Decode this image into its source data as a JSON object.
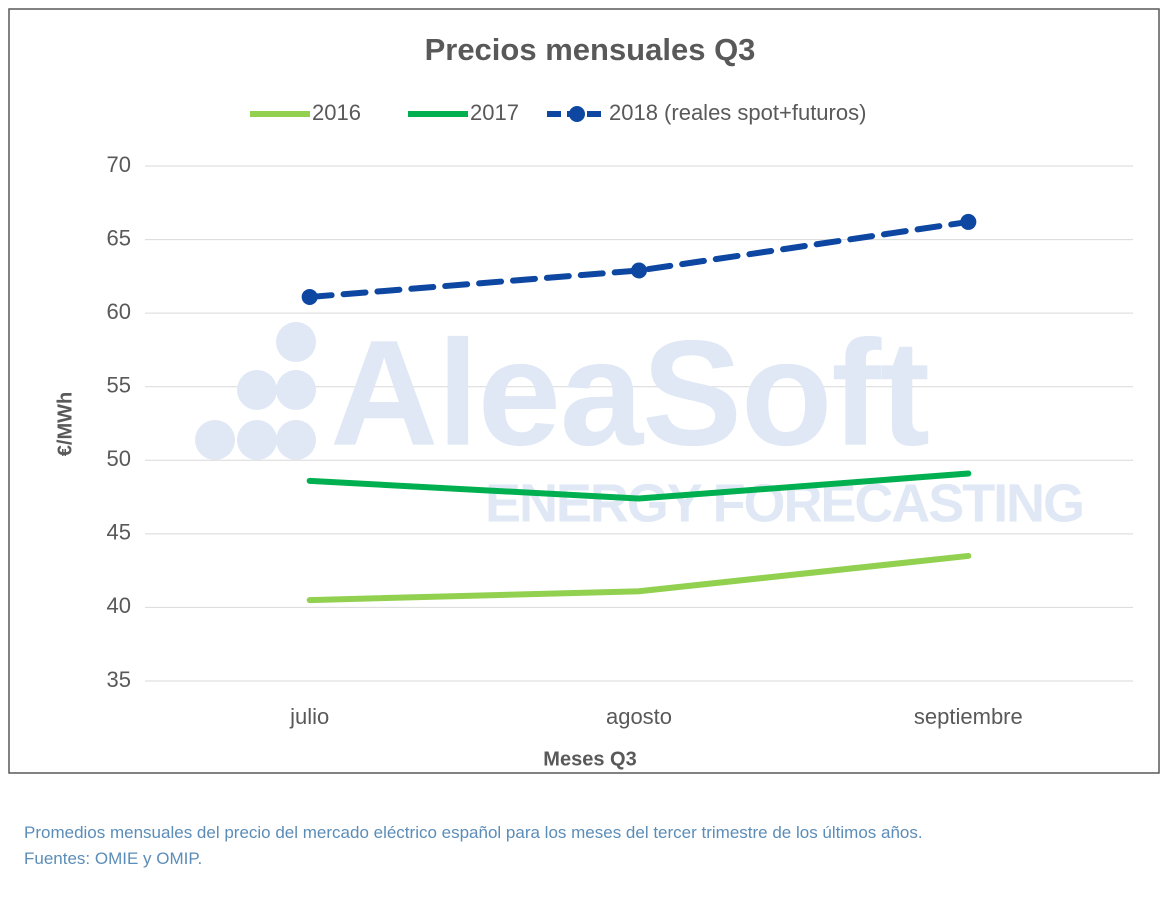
{
  "chart_data": {
    "type": "line",
    "title": "Precios mensuales Q3",
    "x_label": "Meses Q3",
    "y_label": "€/MWh",
    "categories": [
      "julio",
      "agosto",
      "septiembre"
    ],
    "series": [
      {
        "name": "2016",
        "color": "#92d050",
        "dashed": false,
        "markers": false,
        "values": [
          40.5,
          41.1,
          43.5
        ]
      },
      {
        "name": "2017",
        "color": "#00b050",
        "dashed": false,
        "markers": false,
        "values": [
          48.6,
          47.4,
          49.1
        ]
      },
      {
        "name": "2018 (reales spot+futuros)",
        "color": "#0d47a1",
        "dashed": true,
        "markers": true,
        "values": [
          61.1,
          62.9,
          66.2
        ]
      }
    ],
    "ylim": [
      35,
      70
    ],
    "yticks": [
      35,
      40,
      45,
      50,
      55,
      60,
      65,
      70
    ],
    "grid": true,
    "legend": "top",
    "watermark": [
      "AleaSoft",
      "ENERGY FORECASTING"
    ],
    "caption": "Promedios mensuales del precio del mercado eléctrico español para los meses del tercer trimestre de los últimos años.",
    "source": "Fuentes: OMIE y OMIP."
  }
}
